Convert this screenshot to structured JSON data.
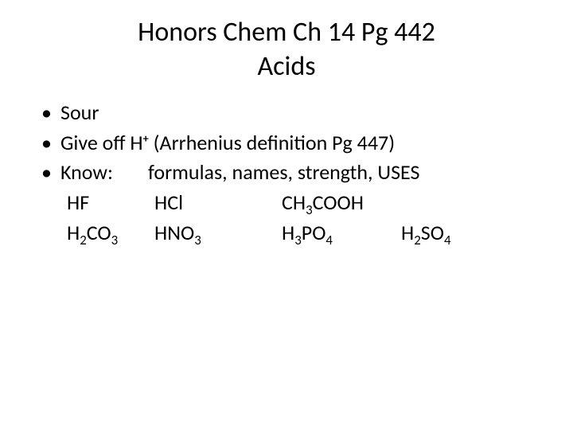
{
  "title": {
    "line1": "Honors Chem Ch 14 Pg 442",
    "line2": "Acids",
    "fontsize": 34,
    "color": "#000000"
  },
  "bullets": {
    "b1": "Sour",
    "b2_pre": "Give off H",
    "b2_sup": "+",
    "b2_post": " (Arrhenius definition Pg 447)",
    "b3_label": "Know:",
    "b3_rest": "formulas, names, strength, USES"
  },
  "row1": {
    "c1": "HF",
    "c2": "HCl",
    "c3_pre": "CH",
    "c3_sub": "3",
    "c3_post": "COOH"
  },
  "row2": {
    "c1_pre": "H",
    "c1_sub": "2",
    "c1_mid": "CO",
    "c1_sub2": "3",
    "c2_pre": "HNO",
    "c2_sub": "3",
    "c3_pre": "H",
    "c3_sub": "3",
    "c3_mid": "PO",
    "c3_sub2": "4",
    "c4_pre": "H",
    "c4_sub": "2",
    "c4_mid": "SO",
    "c4_sub2": "4"
  },
  "layout": {
    "col_w1": 110,
    "col_w2": 160,
    "col_w3": 150,
    "col_w4": 120,
    "background": "#ffffff",
    "text_color": "#000000",
    "body_fontsize": 26
  }
}
